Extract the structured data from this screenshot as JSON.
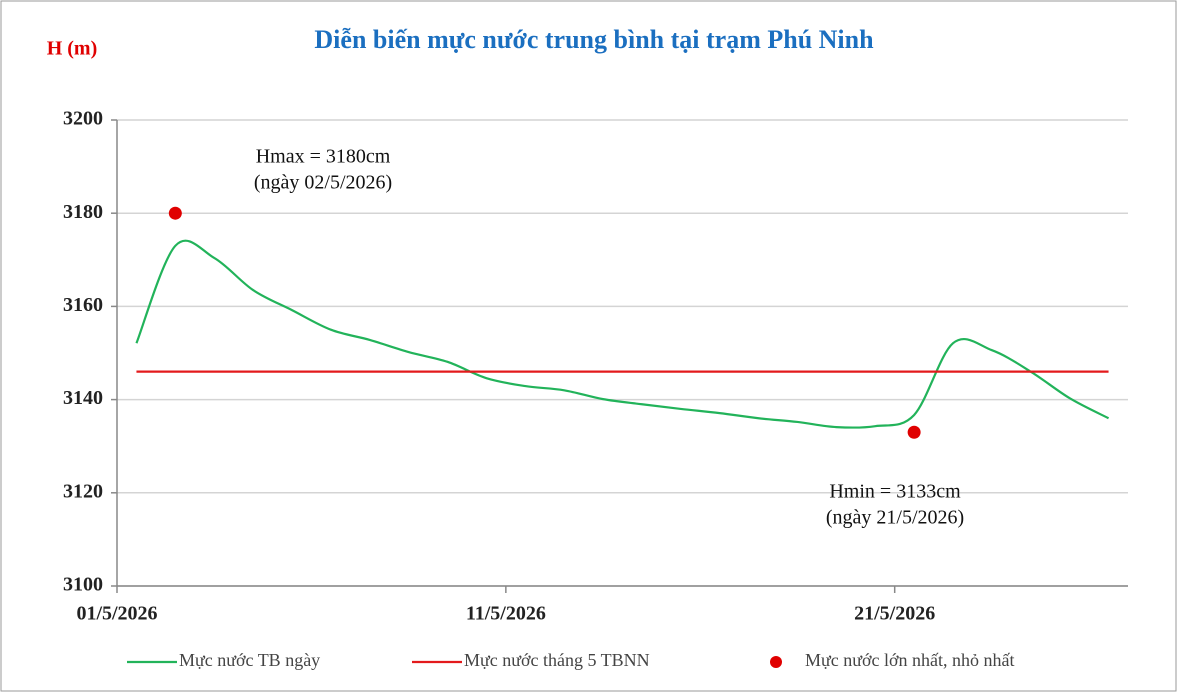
{
  "chart_data": {
    "type": "line",
    "title": "Diễn biến mực nước trung bình tại trạm Phú Ninh",
    "y_label": "H (m)",
    "categories": [
      "01/5/2026",
      null,
      null,
      null,
      null,
      null,
      null,
      null,
      null,
      null,
      "11/5/2026",
      null,
      null,
      null,
      null,
      null,
      null,
      null,
      null,
      null,
      "21/5/2026",
      null,
      null,
      null,
      null,
      null
    ],
    "ylim": [
      3100,
      3200
    ],
    "yticks": [
      3100,
      3120,
      3140,
      3160,
      3180,
      3200
    ],
    "grid": true,
    "smooth": true,
    "legend": "bottom",
    "series": [
      {
        "name": "Mực nước TB ngày",
        "type": "line",
        "color": "#22b35a",
        "values": [
          3152.1,
          3173,
          3170.4,
          3163.5,
          3159.2,
          3155,
          3152.8,
          3150.2,
          3148.1,
          3144.6,
          3142.9,
          3142,
          3140.1,
          3139,
          3138,
          3137.1,
          3136,
          3135.2,
          3134.1,
          3134.3,
          3136.7,
          3152.1,
          3150.6,
          3146,
          3140.3,
          3136
        ]
      },
      {
        "name": "Mực nước tháng 5 TBNN",
        "type": "line",
        "color": "#e31a1c",
        "values": [
          3146,
          3146,
          3146,
          3146,
          3146,
          3146,
          3146,
          3146,
          3146,
          3146,
          3146,
          3146,
          3146,
          3146,
          3146,
          3146,
          3146,
          3146,
          3146,
          3146,
          3146,
          3146,
          3146,
          3146,
          3146,
          3146
        ]
      },
      {
        "name": "Mực nước lớn nhất, nhỏ nhất",
        "type": "scatter",
        "color": "#e00000",
        "values": [
          null,
          3180,
          null,
          null,
          null,
          null,
          null,
          null,
          null,
          null,
          null,
          null,
          null,
          null,
          null,
          null,
          null,
          null,
          null,
          null,
          3133,
          null,
          null,
          null,
          null,
          null
        ]
      }
    ],
    "annotations": [
      "Hmax = 3180cm",
      "(ngày 02/5/2026)",
      "Hmin = 3133cm",
      "(ngày 21/5/2026)"
    ]
  }
}
